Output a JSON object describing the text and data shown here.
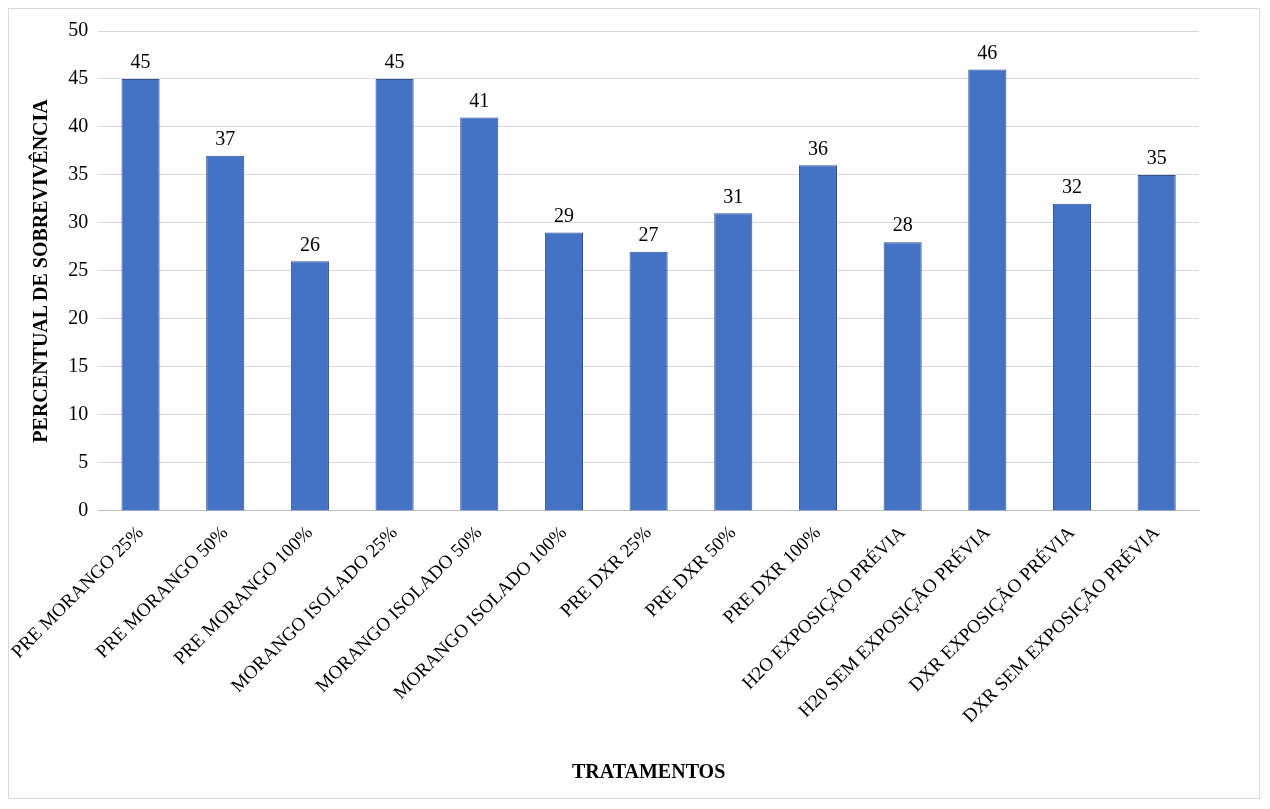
{
  "chart_data": {
    "type": "bar",
    "categories": [
      "PRE MORANGO 25%",
      "PRE MORANGO 50%",
      "PRE MORANGO 100%",
      "MORANGO ISOLADO 25%",
      "MORANGO ISOLADO 50%",
      "MORANGO ISOLADO 100%",
      "PRE DXR 25%",
      "PRE DXR 50%",
      "PRE DXR 100%",
      "H2O EXPOSIÇÃO PRÉVIA",
      "H20 SEM EXPOSIÇÃO PRÉVIA",
      "DXR EXPOSIÇÃO PRÉVIA",
      "DXR SEM EXPOSIÇÃO PRÉVIA"
    ],
    "values": [
      45,
      37,
      26,
      45,
      41,
      29,
      27,
      31,
      36,
      28,
      46,
      32,
      35
    ],
    "color": "#4472c4",
    "xlabel": "TRATAMENTOS",
    "ylabel": "PERCENTUAL DE SOBREVIVÊNCIA",
    "ylim": [
      0,
      50
    ],
    "yticks": [
      0,
      5,
      10,
      15,
      20,
      25,
      30,
      35,
      40,
      45,
      50
    ],
    "grid": "y",
    "data_labels": true,
    "legend": false
  }
}
